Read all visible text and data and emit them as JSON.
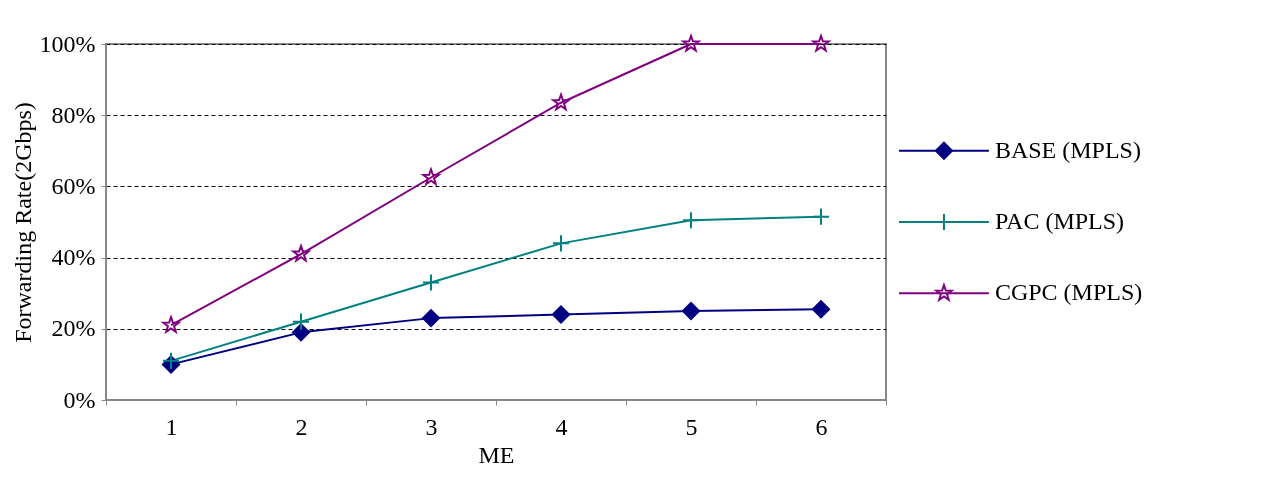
{
  "chart_data": {
    "type": "line",
    "xlabel": "ME",
    "ylabel": "Forwarding Rate(2Gbps)",
    "categories": [
      "1",
      "2",
      "3",
      "4",
      "5",
      "6"
    ],
    "series": [
      {
        "name": "BASE (MPLS)",
        "color": "#000080",
        "marker": "diamond",
        "values": [
          10,
          19,
          23,
          24,
          25,
          25.5
        ]
      },
      {
        "name": "PAC   (MPLS)",
        "color": "#008080",
        "marker": "cross",
        "values": [
          11,
          22,
          33,
          44,
          50.5,
          51.5
        ]
      },
      {
        "name": "CGPC (MPLS)",
        "color": "#800080",
        "marker": "star",
        "values": [
          21,
          41,
          62.5,
          83.5,
          100,
          100
        ]
      }
    ],
    "ylim": [
      0,
      100
    ],
    "yticks": [
      {
        "value": 0,
        "label": "0%"
      },
      {
        "value": 20,
        "label": "20%"
      },
      {
        "value": 40,
        "label": "40%"
      },
      {
        "value": 60,
        "label": "60%"
      },
      {
        "value": 80,
        "label": "80%"
      },
      {
        "value": 100,
        "label": "100%"
      }
    ],
    "grid": "y",
    "legend": "right",
    "line_style": "solid"
  }
}
